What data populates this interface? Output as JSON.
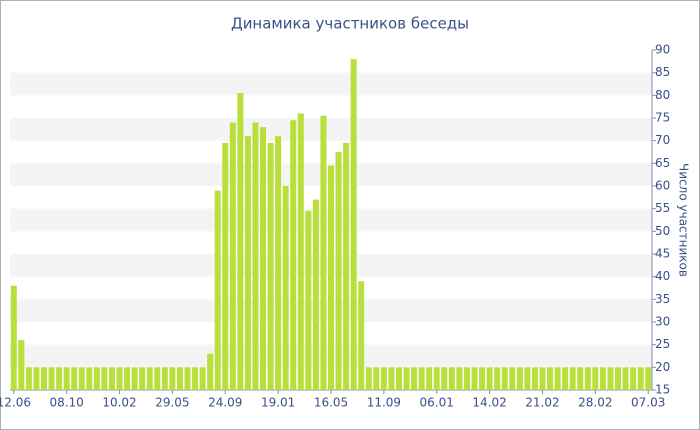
{
  "chart_data": {
    "type": "bar",
    "title": "Динамика участников беседы",
    "y_label": "Число участников",
    "categories": [
      "12.06",
      null,
      null,
      null,
      null,
      null,
      null,
      "08.10",
      null,
      null,
      null,
      null,
      null,
      null,
      "10.02",
      null,
      null,
      null,
      null,
      null,
      null,
      "29.05",
      null,
      null,
      null,
      null,
      null,
      null,
      "24.09",
      null,
      null,
      null,
      null,
      null,
      null,
      "19.01",
      null,
      null,
      null,
      null,
      null,
      null,
      "16.05",
      null,
      null,
      null,
      null,
      null,
      null,
      "11.09",
      null,
      null,
      null,
      null,
      null,
      null,
      "06.01",
      null,
      null,
      null,
      null,
      null,
      null,
      "14.02",
      null,
      null,
      null,
      null,
      null,
      null,
      "21.02",
      null,
      null,
      null,
      null,
      null,
      null,
      "28.02",
      null,
      null,
      null,
      null,
      null,
      null,
      "07.03"
    ],
    "values": [
      38,
      26,
      20,
      20,
      20,
      20,
      20,
      20,
      20,
      20,
      20,
      20,
      20,
      20,
      20,
      20,
      20,
      20,
      20,
      20,
      20,
      20,
      20,
      20,
      20,
      20,
      23,
      59,
      69.5,
      74,
      80.5,
      71,
      74,
      73,
      69.5,
      71,
      60,
      74.5,
      76,
      54.5,
      57,
      75.5,
      64.5,
      67.5,
      69.5,
      88,
      39,
      20,
      20,
      20,
      20,
      20,
      20,
      20,
      20,
      20,
      20,
      20,
      20,
      20,
      20,
      20,
      20,
      20,
      20,
      20,
      20,
      20,
      20,
      20,
      20,
      20,
      20,
      20,
      20,
      20,
      20,
      20,
      20,
      20,
      20,
      20,
      20,
      20,
      20
    ],
    "color": "#b8df3a",
    "ylim": [
      15,
      90
    ],
    "yticks": [
      15,
      20,
      25,
      30,
      35,
      40,
      45,
      50,
      55,
      60,
      65,
      70,
      75,
      80,
      85,
      90
    ],
    "grid": true
  }
}
